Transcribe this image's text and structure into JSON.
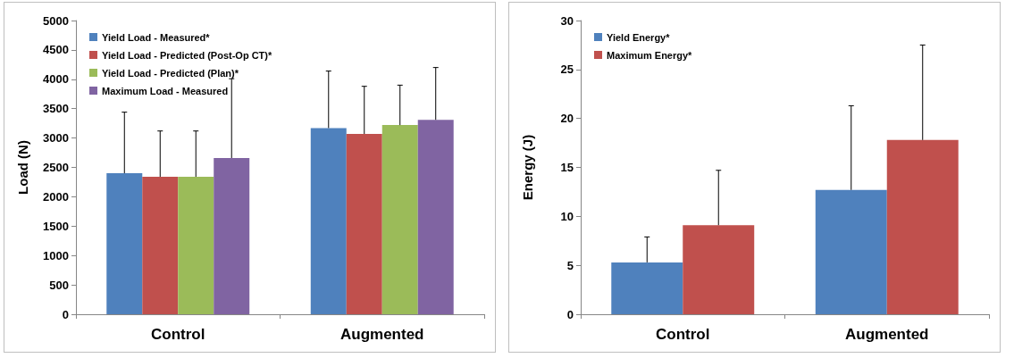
{
  "chart_data": [
    {
      "type": "bar",
      "ylabel": "Load (N)",
      "categories": [
        "Control",
        "Augmented"
      ],
      "ylim": [
        0,
        5000
      ],
      "yticks": [
        0,
        500,
        1000,
        1500,
        2000,
        2500,
        3000,
        3500,
        4000,
        4500,
        5000
      ],
      "grid": false,
      "legend": "top left",
      "series": [
        {
          "name": "Yield Load - Measured*",
          "color": "#4f81bd",
          "values": [
            2400,
            3170
          ],
          "errors": [
            [
              2400,
              3440
            ],
            [
              3170,
              4140
            ]
          ]
        },
        {
          "name": "Yield Load - Predicted (Post-Op CT)*",
          "color": "#c0504d",
          "values": [
            2340,
            3070
          ],
          "errors": [
            [
              2340,
              3120
            ],
            [
              3070,
              3880
            ]
          ]
        },
        {
          "name": "Yield Load - Predicted (Plan)*",
          "color": "#9bbb59",
          "values": [
            2340,
            3220
          ],
          "errors": [
            [
              2340,
              3120
            ],
            [
              3220,
              3900
            ]
          ]
        },
        {
          "name": "Maximum Load - Measured",
          "color": "#8064a2",
          "values": [
            2660,
            3310
          ],
          "errors": [
            [
              2660,
              4010
            ],
            [
              3310,
              4200
            ]
          ]
        }
      ]
    },
    {
      "type": "bar",
      "ylabel": "Energy (J)",
      "categories": [
        "Control",
        "Augmented"
      ],
      "ylim": [
        0,
        30
      ],
      "yticks": [
        0,
        5,
        10,
        15,
        20,
        25,
        30
      ],
      "grid": false,
      "legend": "top left",
      "series": [
        {
          "name": "Yield Energy*",
          "color": "#4f81bd",
          "values": [
            5.3,
            12.7
          ],
          "errors": [
            [
              5.3,
              7.9
            ],
            [
              12.7,
              21.3
            ]
          ]
        },
        {
          "name": "Maximum Energy*",
          "color": "#c0504d",
          "values": [
            9.1,
            17.8
          ],
          "errors": [
            [
              9.1,
              14.7
            ],
            [
              17.8,
              27.5
            ]
          ]
        }
      ]
    }
  ]
}
